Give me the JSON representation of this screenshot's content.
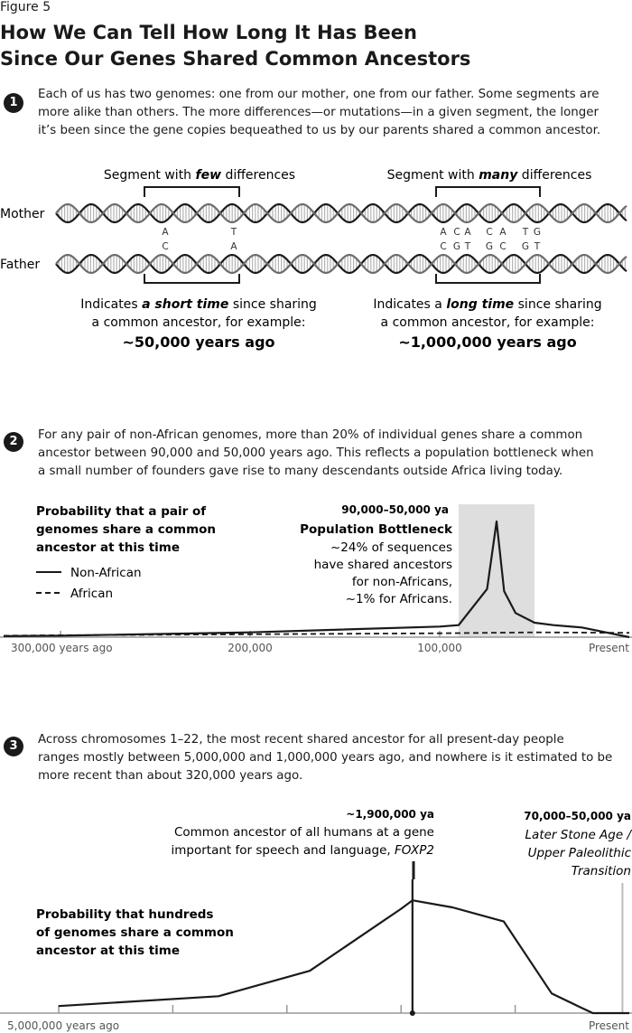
{
  "figure_label": "Figure 5",
  "title_line1": "How We Can Tell How Long It Has Been",
  "title_line2": "Since Our Genes Shared Common Ancestors",
  "section1": {
    "number": "1",
    "text": [
      "Each of us has two genomes: one from our mother, one from our father. Some segments are",
      "more alike than others. The more differences—or mutations—in a given segment, the longer",
      "it’s been since the gene copies bequeathed to us by our parents shared a common ancestor."
    ],
    "label_few": {
      "pre": "Segment with ",
      "em": "few",
      "post": " differences"
    },
    "label_many": {
      "pre": "Segment with ",
      "em": "many",
      "post": " differences"
    },
    "mother_label": "Mother",
    "father_label": "Father",
    "mother_letters": [
      "A",
      "T",
      "A",
      "C",
      "A",
      "C",
      "A",
      "T",
      "G"
    ],
    "father_letters": [
      "C",
      "A",
      "C",
      "G",
      "T",
      "G",
      "C",
      "G",
      "T"
    ],
    "left_note": {
      "line1_pre": "Indicates ",
      "line1_em": "a short time",
      "line1_post": " since sharing",
      "line2": "a common ancestor, for example:",
      "value": "~50,000 years ago"
    },
    "right_note": {
      "line1_pre": "Indicates a ",
      "line1_em": "long time",
      "line1_post": " since sharing",
      "line2": "a common ancestor, for example:",
      "value": "~1,000,000 years ago"
    }
  },
  "section2": {
    "number": "2",
    "text": [
      "For any pair of non-African genomes, more than 20% of individual genes share a common",
      "ancestor between 90,000 and 50,000 years ago. This reflects a population bottleneck when",
      "a small number of founders gave rise to many descendants outside Africa living today."
    ],
    "ylabel": [
      "Probability that a pair of",
      "genomes share a common",
      "ancestor at this time"
    ],
    "legend": [
      "Non-African",
      "African"
    ],
    "band_label": "90,000–50,000 ya",
    "annotation_title": "Population Bottleneck",
    "annotation_lines": [
      "~24% of sequences",
      "have shared ancestors",
      "for non-Africans,",
      "~1% for Africans."
    ],
    "tick_labels": [
      "300,000 years ago",
      "200,000",
      "100,000",
      "Present"
    ]
  },
  "section3": {
    "number": "3",
    "text": [
      "Across chromosomes 1–22, the most recent shared ancestor for all present-day people",
      "ranges mostly between 5,000,000 and 1,000,000 years ago, and nowhere is it estimated to be",
      "more recent than about 320,000 years ago."
    ],
    "foxp2_date": "~1,900,000 ya",
    "foxp2_lines": [
      "Common ancestor of all humans at a gene",
      "important for speech and language, "
    ],
    "foxp2_gene": "FOXP2",
    "lsa_date": "70,000–50,000 ya",
    "lsa_lines": [
      "Later Stone Age /",
      "Upper Paleolithic",
      "Transition"
    ],
    "ylabel": [
      "Probability that hundreds",
      "of genomes share a common",
      "ancestor at this time"
    ],
    "tick_labels": [
      "5,000,000 years ago",
      "Present"
    ]
  },
  "chart_data": [
    {
      "type": "line",
      "xlabel": "",
      "ylabel": "Probability that a pair of genomes share a common ancestor at this time",
      "x_units": "years ago",
      "xlim": [
        300000,
        0
      ],
      "ticks": [
        300000,
        200000,
        100000,
        0
      ],
      "highlight_band": [
        90000,
        50000
      ],
      "series": [
        {
          "name": "Non-African",
          "x": [
            330000,
            300000,
            200000,
            100000,
            90000,
            75000,
            70000,
            66000,
            60000,
            50000,
            40000,
            25000,
            0
          ],
          "y": [
            0.2,
            0.3,
            1.0,
            2.2,
            2.5,
            10,
            24,
            9.5,
            5,
            3,
            2.5,
            2,
            0
          ]
        },
        {
          "name": "African",
          "x": [
            330000,
            300000,
            200000,
            100000,
            50000,
            0
          ],
          "y": [
            0.3,
            0.4,
            0.6,
            0.8,
            1.0,
            0.9
          ]
        }
      ]
    },
    {
      "type": "line",
      "xlabel": "",
      "ylabel": "Probability that hundreds of genomes share a common ancestor at this time",
      "x_units": "years ago",
      "xlim": [
        5000000,
        0
      ],
      "series": [
        {
          "x": [
            5000000,
            3600000,
            2800000,
            2000000,
            1900000,
            1550000,
            1100000,
            680000,
            450000,
            320000,
            0
          ],
          "y": [
            0.05,
            0.12,
            0.3,
            0.74,
            0.8,
            0.75,
            0.65,
            0.14,
            0.05,
            0.0,
            0.0
          ]
        }
      ],
      "markers": [
        1900000,
        60000
      ]
    }
  ]
}
